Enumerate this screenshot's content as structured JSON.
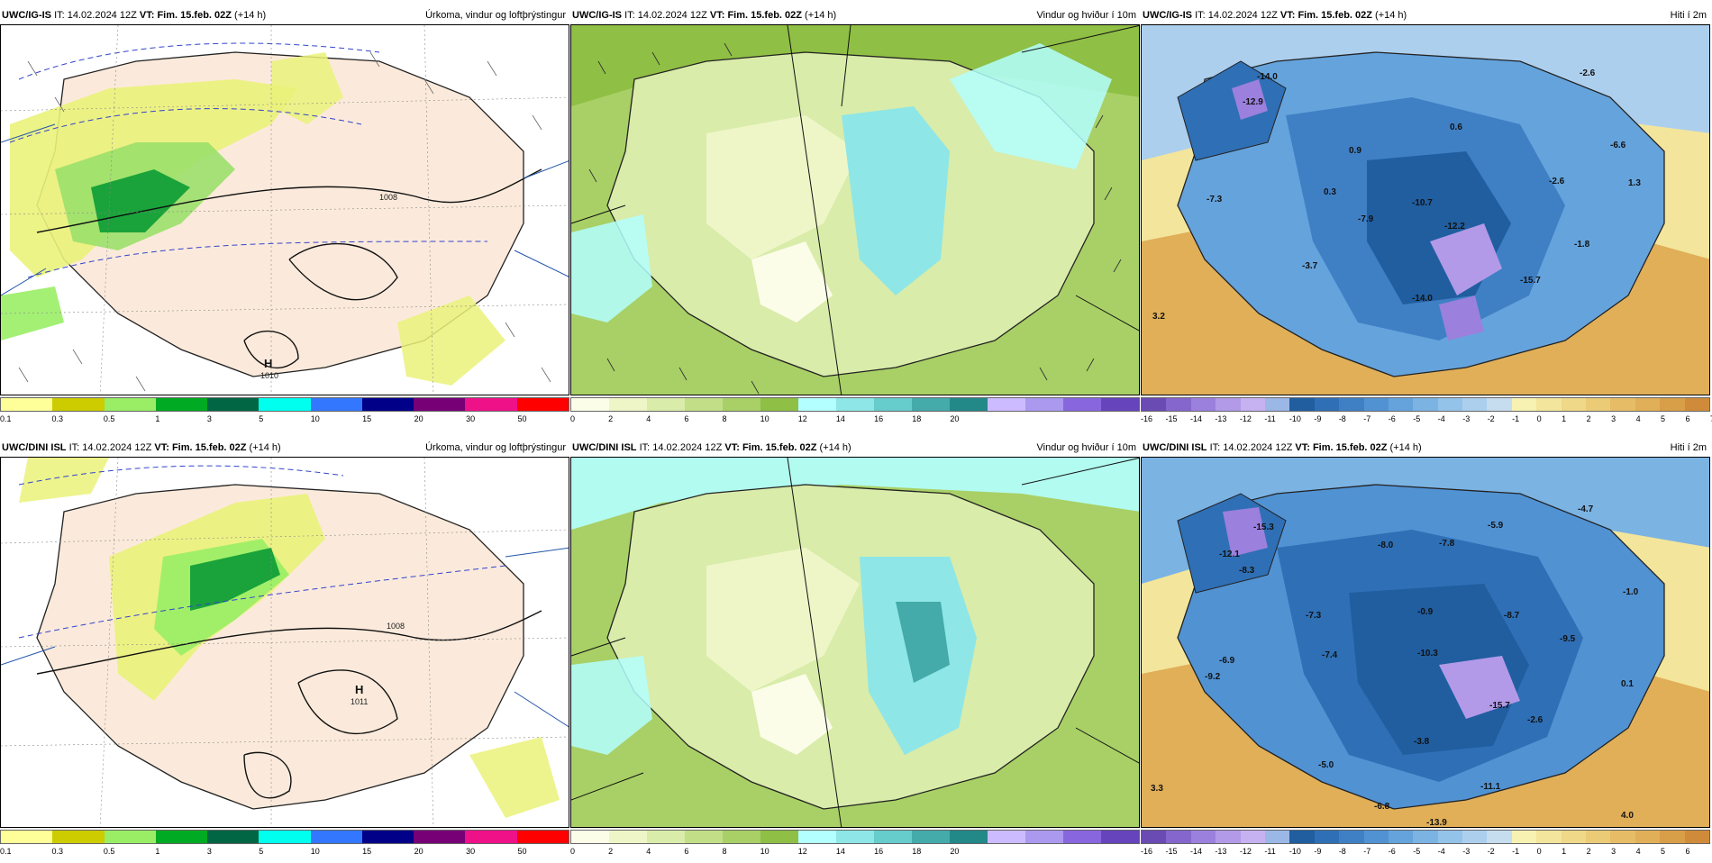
{
  "colors": {
    "precip": [
      "#ffff99",
      "#cccc00",
      "#99ee66",
      "#00aa22",
      "#006644",
      "#00ffee",
      "#3377ff",
      "#000088",
      "#770077",
      "#ee1188",
      "#ff0000"
    ],
    "wind": [
      "#fbfde9",
      "#eef6c8",
      "#d9ecaa",
      "#c2df88",
      "#a9d066",
      "#8fbf44",
      "#b3ffff",
      "#8ee6e6",
      "#66cccc",
      "#44aaaa",
      "#228888",
      "#ccbbff",
      "#aa99ee",
      "#8866dd",
      "#6644bb"
    ],
    "temp": [
      "#6a4ab3",
      "#8466cc",
      "#9b80dd",
      "#b29ae8",
      "#c6b2f0",
      "#9bb7e6",
      "#205ea0",
      "#2f6fb5",
      "#3f80c5",
      "#5192d3",
      "#65a3dc",
      "#7bb3e3",
      "#94c3ea",
      "#adcfee",
      "#c6ddef",
      "#f7f2b2",
      "#f3e59b",
      "#efd888",
      "#ebcb76",
      "#e6bd66",
      "#e0af58",
      "#d99e48",
      "#d08b3a"
    ]
  },
  "colorbars": {
    "precip_ticks": [
      "0.1",
      "0.3",
      "0.5",
      "1",
      "3",
      "5",
      "10",
      "15",
      "20",
      "30",
      "50"
    ],
    "wind_ticks": [
      "0",
      "2",
      "4",
      "6",
      "8",
      "10",
      "12",
      "14",
      "16",
      "18",
      "20"
    ],
    "temp_ticks_top": [
      "-16",
      "-15",
      "-14",
      "-13",
      "-12",
      "-11",
      "-10",
      "-9",
      "-8",
      "-7",
      "-6",
      "-5",
      "-4",
      "-3",
      "-2",
      "-1",
      "0",
      "1",
      "2",
      "3",
      "4",
      "5",
      "6",
      "7"
    ],
    "temp_ticks_bottom": [
      "-16",
      "-15",
      "-14",
      "-13",
      "-12",
      "-11",
      "-10",
      "-9",
      "-8",
      "-7",
      "-6",
      "-5",
      "-4",
      "-3",
      "-2",
      "-1",
      "0",
      "1",
      "2",
      "3",
      "4",
      "5",
      "6"
    ]
  },
  "panels": {
    "top": {
      "model": "UWC/IG-IS",
      "it_label": "IT:",
      "it_value": "14.02.2024 12Z",
      "vt_label": "VT:",
      "vt_value": "Fim. 15.feb. 02Z",
      "lead": "(+14 h)",
      "precip_title": "Úrkoma, vindur og loftþrýstingur",
      "wind_title": "Vindur og hviður í 10m",
      "temp_title": "Hiti í 2m",
      "pressure_high": "H",
      "pressure_high_value": "1010",
      "isobar_label": "1008",
      "temp_min_labels": [
        "-14.0",
        "-12.9",
        "-7.3",
        "-7.9",
        "-10.7",
        "-12.2",
        "-14.0",
        "-15.7",
        "-3.7",
        "-2.6",
        "-6.6",
        "-2.6",
        "-1.8",
        "1.3",
        "0.3",
        "0.9",
        "0.6",
        "3.2"
      ]
    },
    "bottom": {
      "model": "UWC/DINI ISL",
      "it_label": "IT:",
      "it_value": "14.02.2024 12Z",
      "vt_label": "VT:",
      "vt_value": "Fim. 15.feb. 02Z",
      "lead": "(+14 h)",
      "precip_title": "Úrkoma, vindur og loftþrýstingur",
      "wind_title": "Vindur og hviður í 10m",
      "temp_title": "Hiti í 2m",
      "pressure_high": "H",
      "pressure_high_value": "1011",
      "isobar_label": "1008",
      "temp_min_labels": [
        "-15.3",
        "-12.1",
        "-8.3",
        "-9.2",
        "-6.9",
        "-7.3",
        "-7.4",
        "-8.0",
        "-7.8",
        "-5.9",
        "-4.7",
        "-0.9",
        "-8.7",
        "-10.3",
        "-9.5",
        "-1.0",
        "0.1",
        "-15.7",
        "-3.8",
        "-2.6",
        "-5.0",
        "-6.8",
        "-13.9",
        "-11.1",
        "3.3",
        "4.0"
      ]
    }
  }
}
